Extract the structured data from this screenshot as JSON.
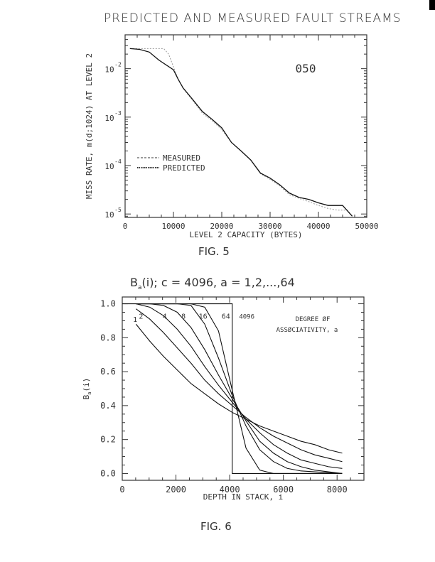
{
  "page": {
    "title": "PREDICTED AND MEASURED FAULT STREAMS",
    "fig5_caption": "FIG. 5",
    "fig6_caption": "FIG. 6"
  },
  "chart_data": [
    {
      "type": "line",
      "title": "PREDICTED AND MEASURED FAULT STREAMS",
      "xlabel": "LEVEL 2 CAPACITY (BYTES)",
      "ylabel": "MISS RATE, m(d;1024) AT LEVEL 2",
      "yscale": "log",
      "xlim": [
        0,
        50000
      ],
      "ylim": [
        8.5e-06,
        0.05
      ],
      "xticks": [
        0,
        10000,
        20000,
        30000,
        40000,
        50000
      ],
      "xtick_labels": [
        "0",
        "10000",
        "20000",
        "30000",
        "40000",
        "50000"
      ],
      "yticks": [
        0.01,
        0.001,
        0.0001,
        1e-05
      ],
      "ytick_labels": [
        [
          "10",
          "-2"
        ],
        [
          "10",
          "-3"
        ],
        [
          "10",
          "-4"
        ],
        [
          "10",
          "-5"
        ]
      ],
      "annotation": "050",
      "legend_position": "center-left",
      "series": [
        {
          "name": "MEASURED",
          "style": "dashed",
          "x": [
            1000,
            4000,
            8000,
            9000,
            10000,
            11000,
            12000,
            14000,
            16000,
            18000,
            20000,
            22000,
            24000,
            26000,
            28000,
            30000,
            32000,
            34000,
            36000,
            38000,
            40000,
            42000,
            44000,
            46000,
            47000
          ],
          "y": [
            0.026,
            0.026,
            0.026,
            0.02,
            0.011,
            0.006,
            0.0039,
            0.0022,
            0.0012,
            0.00085,
            0.00055,
            0.0003,
            0.0002,
            0.00013,
            6.8e-05,
            5.2e-05,
            3.8e-05,
            2.5e-05,
            2.1e-05,
            1.8e-05,
            1.5e-05,
            1.3e-05,
            1.2e-05,
            1.2e-05,
            9e-06
          ]
        },
        {
          "name": "PREDICTED",
          "style": "solid",
          "x": [
            1000,
            3000,
            5000,
            7000,
            10000,
            11000,
            12000,
            14000,
            16000,
            18000,
            20000,
            22000,
            24000,
            26000,
            28000,
            30000,
            32000,
            34000,
            36000,
            38000,
            40000,
            42000,
            45000,
            47000
          ],
          "y": [
            0.026,
            0.025,
            0.022,
            0.015,
            0.0095,
            0.006,
            0.004,
            0.0023,
            0.0013,
            0.0009,
            0.0006,
            0.0003,
            0.0002,
            0.00013,
            7e-05,
            5.5e-05,
            4e-05,
            2.7e-05,
            2.2e-05,
            2e-05,
            1.7e-05,
            1.5e-05,
            1.5e-05,
            9e-06
          ]
        }
      ]
    },
    {
      "type": "line",
      "title_parts": [
        "B",
        "a",
        "(i); c = 4096, a = 1,2,...,64"
      ],
      "xlabel": "DEPTH IN STACK, i",
      "ylabel_parts": [
        "B",
        "a",
        "(i)"
      ],
      "xlim": [
        0,
        9000
      ],
      "ylim": [
        -0.04,
        1.04
      ],
      "xticks": [
        0,
        2000,
        4000,
        6000,
        8000
      ],
      "xtick_labels": [
        "0",
        "2000",
        "4000",
        "6000",
        "8000"
      ],
      "yticks": [
        0.0,
        0.2,
        0.4,
        0.6,
        0.8,
        1.0
      ],
      "ytick_labels": [
        "0.0",
        "0.2",
        "0.4",
        "0.6",
        "0.8",
        "1.0"
      ],
      "annotation": [
        "DEGREE ØF",
        "ASSØCIATIVITY, a"
      ],
      "series": [
        {
          "name": "1",
          "x": [
            512,
            1024,
            1536,
            2048,
            2560,
            3072,
            3584,
            4096,
            4608,
            5120,
            5632,
            6144,
            6656,
            7168,
            7680,
            8192
          ],
          "y": [
            0.88,
            0.78,
            0.69,
            0.61,
            0.53,
            0.47,
            0.41,
            0.36,
            0.32,
            0.28,
            0.25,
            0.22,
            0.19,
            0.17,
            0.14,
            0.12
          ],
          "label_at": [
            400,
            0.91
          ]
        },
        {
          "name": "2",
          "x": [
            512,
            1024,
            1536,
            2048,
            2560,
            3072,
            3584,
            4096,
            4608,
            5120,
            5632,
            6144,
            6656,
            7168,
            7680,
            8192
          ],
          "y": [
            0.97,
            0.91,
            0.83,
            0.74,
            0.65,
            0.55,
            0.47,
            0.4,
            0.33,
            0.27,
            0.22,
            0.18,
            0.14,
            0.11,
            0.09,
            0.07
          ],
          "label_at": [
            620,
            0.93
          ]
        },
        {
          "name": "4",
          "x": [
            512,
            1024,
            1536,
            2048,
            2560,
            3072,
            3584,
            4096,
            4608,
            5120,
            5632,
            6144,
            6656,
            7168,
            7680,
            8192
          ],
          "y": [
            1.0,
            0.98,
            0.93,
            0.85,
            0.75,
            0.63,
            0.52,
            0.42,
            0.32,
            0.24,
            0.17,
            0.12,
            0.08,
            0.06,
            0.04,
            0.03
          ],
          "label_at": [
            1500,
            0.93
          ]
        },
        {
          "name": "8",
          "x": [
            512,
            1024,
            1536,
            2048,
            2560,
            3072,
            3584,
            4096,
            4608,
            5120,
            5632,
            6144,
            6656,
            7168,
            7680,
            8192
          ],
          "y": [
            1.0,
            1.0,
            0.99,
            0.95,
            0.86,
            0.73,
            0.58,
            0.44,
            0.31,
            0.19,
            0.12,
            0.07,
            0.04,
            0.02,
            0.01,
            0.0
          ],
          "label_at": [
            2200,
            0.93
          ]
        },
        {
          "name": "16",
          "x": [
            512,
            2048,
            2560,
            3072,
            3584,
            4096,
            4608,
            5120,
            5632,
            6144,
            6656,
            7168,
            8192
          ],
          "y": [
            1.0,
            1.0,
            0.99,
            0.88,
            0.68,
            0.46,
            0.28,
            0.14,
            0.07,
            0.03,
            0.015,
            0.01,
            0.0
          ],
          "label_at": [
            2850,
            0.93
          ]
        },
        {
          "name": "64",
          "x": [
            512,
            2560,
            3072,
            3584,
            4096,
            4608,
            5120,
            5632,
            8192
          ],
          "y": [
            1.0,
            1.0,
            0.98,
            0.84,
            0.49,
            0.15,
            0.02,
            0.0,
            0.0
          ],
          "label_at": [
            3700,
            0.93
          ]
        },
        {
          "name": "4096",
          "x": [
            0,
            4096,
            4096,
            8192
          ],
          "y": [
            1.0,
            1.0,
            0.0,
            0.0
          ],
          "label_at": [
            4350,
            0.93
          ]
        }
      ]
    }
  ]
}
